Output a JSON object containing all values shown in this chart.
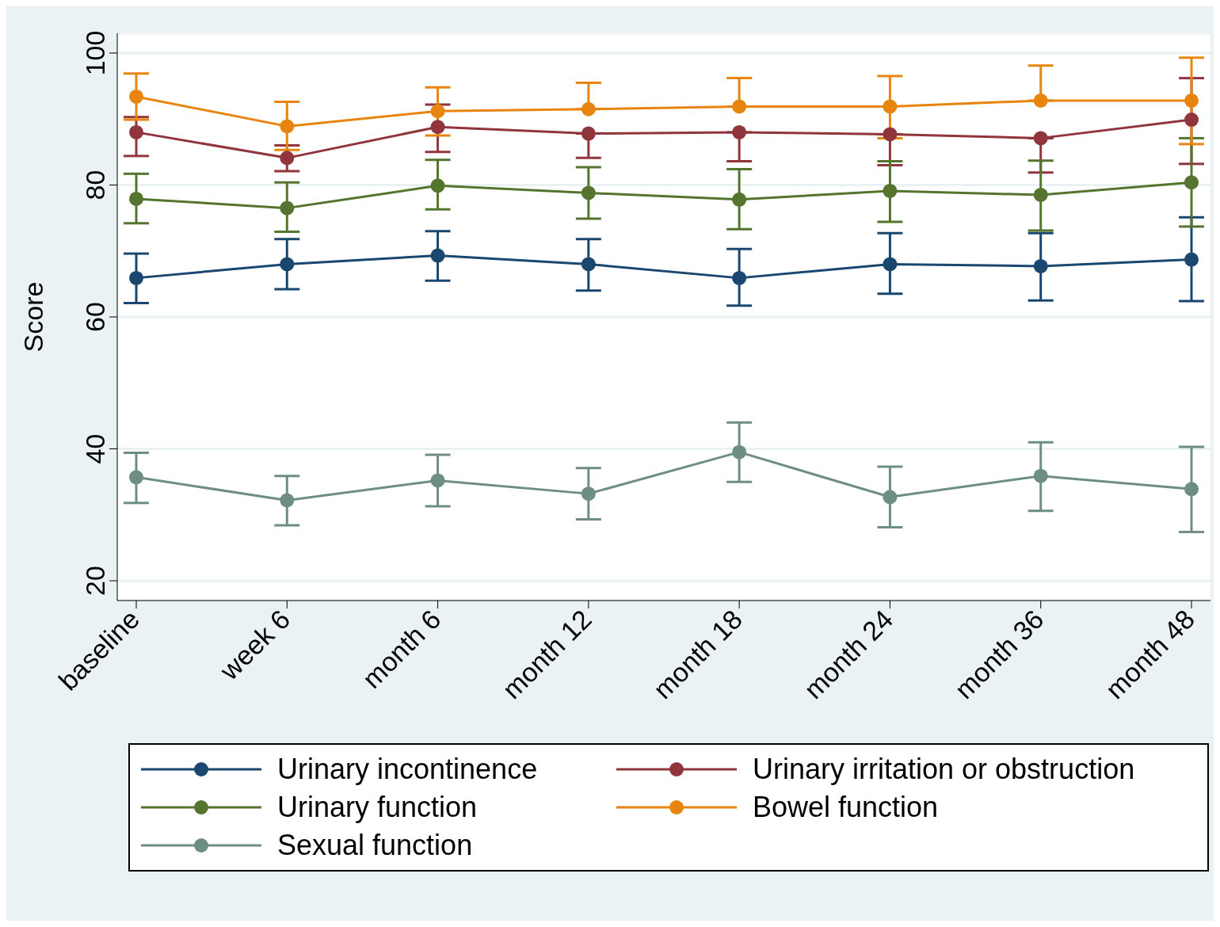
{
  "chart_data": {
    "type": "line",
    "ylabel": "Score",
    "categories": [
      "baseline",
      "week 6",
      "month 6",
      "month 12",
      "month 18",
      "month 24",
      "month 36",
      "month 48"
    ],
    "series": [
      {
        "name": "Urinary incontinence",
        "color": "#1a476f",
        "values": [
          65.9,
          68.0,
          69.3,
          68.0,
          65.9,
          68.0,
          67.7,
          68.7
        ],
        "errors": [
          [
            62.1,
            69.6
          ],
          [
            64.2,
            71.8
          ],
          [
            65.5,
            73.0
          ],
          [
            64.0,
            71.8
          ],
          [
            61.7,
            70.3
          ],
          [
            63.5,
            72.7
          ],
          [
            62.5,
            72.7
          ],
          [
            62.4,
            75.1
          ]
        ]
      },
      {
        "name": "Urinary irritation or obstruction",
        "color": "#90353b",
        "values": [
          88.0,
          84.1,
          88.8,
          87.8,
          88.0,
          87.7,
          87.1,
          89.9
        ],
        "errors": [
          [
            84.4,
            90.3
          ],
          [
            82.1,
            86.0
          ],
          [
            85.0,
            92.2
          ],
          [
            84.1,
            87.8
          ],
          [
            83.6,
            88.0
          ],
          [
            83.0,
            87.7
          ],
          [
            81.9,
            87.1
          ],
          [
            83.2,
            96.2
          ]
        ]
      },
      {
        "name": "Urinary function",
        "color": "#55752f",
        "values": [
          77.9,
          76.5,
          79.9,
          78.8,
          77.8,
          79.1,
          78.5,
          80.4
        ],
        "errors": [
          [
            74.2,
            81.7
          ],
          [
            72.9,
            80.4
          ],
          [
            76.3,
            83.8
          ],
          [
            74.9,
            82.7
          ],
          [
            73.3,
            82.4
          ],
          [
            74.4,
            83.6
          ],
          [
            73.1,
            83.7
          ],
          [
            73.7,
            87.1
          ]
        ]
      },
      {
        "name": "Bowel function",
        "color": "#e8850f",
        "values": [
          93.4,
          88.9,
          91.2,
          91.5,
          91.9,
          91.9,
          92.8,
          92.8
        ],
        "errors": [
          [
            89.9,
            96.9
          ],
          [
            85.3,
            92.6
          ],
          [
            87.5,
            94.8
          ],
          [
            91.5,
            95.5
          ],
          [
            91.9,
            96.2
          ],
          [
            87.1,
            96.5
          ],
          [
            92.8,
            98.1
          ],
          [
            86.2,
            99.3
          ]
        ]
      },
      {
        "name": "Sexual function",
        "color": "#6e8e84",
        "values": [
          35.7,
          32.2,
          35.2,
          33.2,
          39.5,
          32.7,
          35.9,
          33.9
        ],
        "errors": [
          [
            31.8,
            39.4
          ],
          [
            28.4,
            35.9
          ],
          [
            31.3,
            39.1
          ],
          [
            29.3,
            37.1
          ],
          [
            35.0,
            44.0
          ],
          [
            28.1,
            37.3
          ],
          [
            30.6,
            41.0
          ],
          [
            27.4,
            40.3
          ]
        ]
      }
    ],
    "ylim": [
      17,
      103
    ],
    "yticks": [
      20,
      40,
      60,
      80,
      100
    ],
    "grid": "y",
    "legend": "bottom",
    "marker": "circle",
    "line_style": "solid"
  }
}
